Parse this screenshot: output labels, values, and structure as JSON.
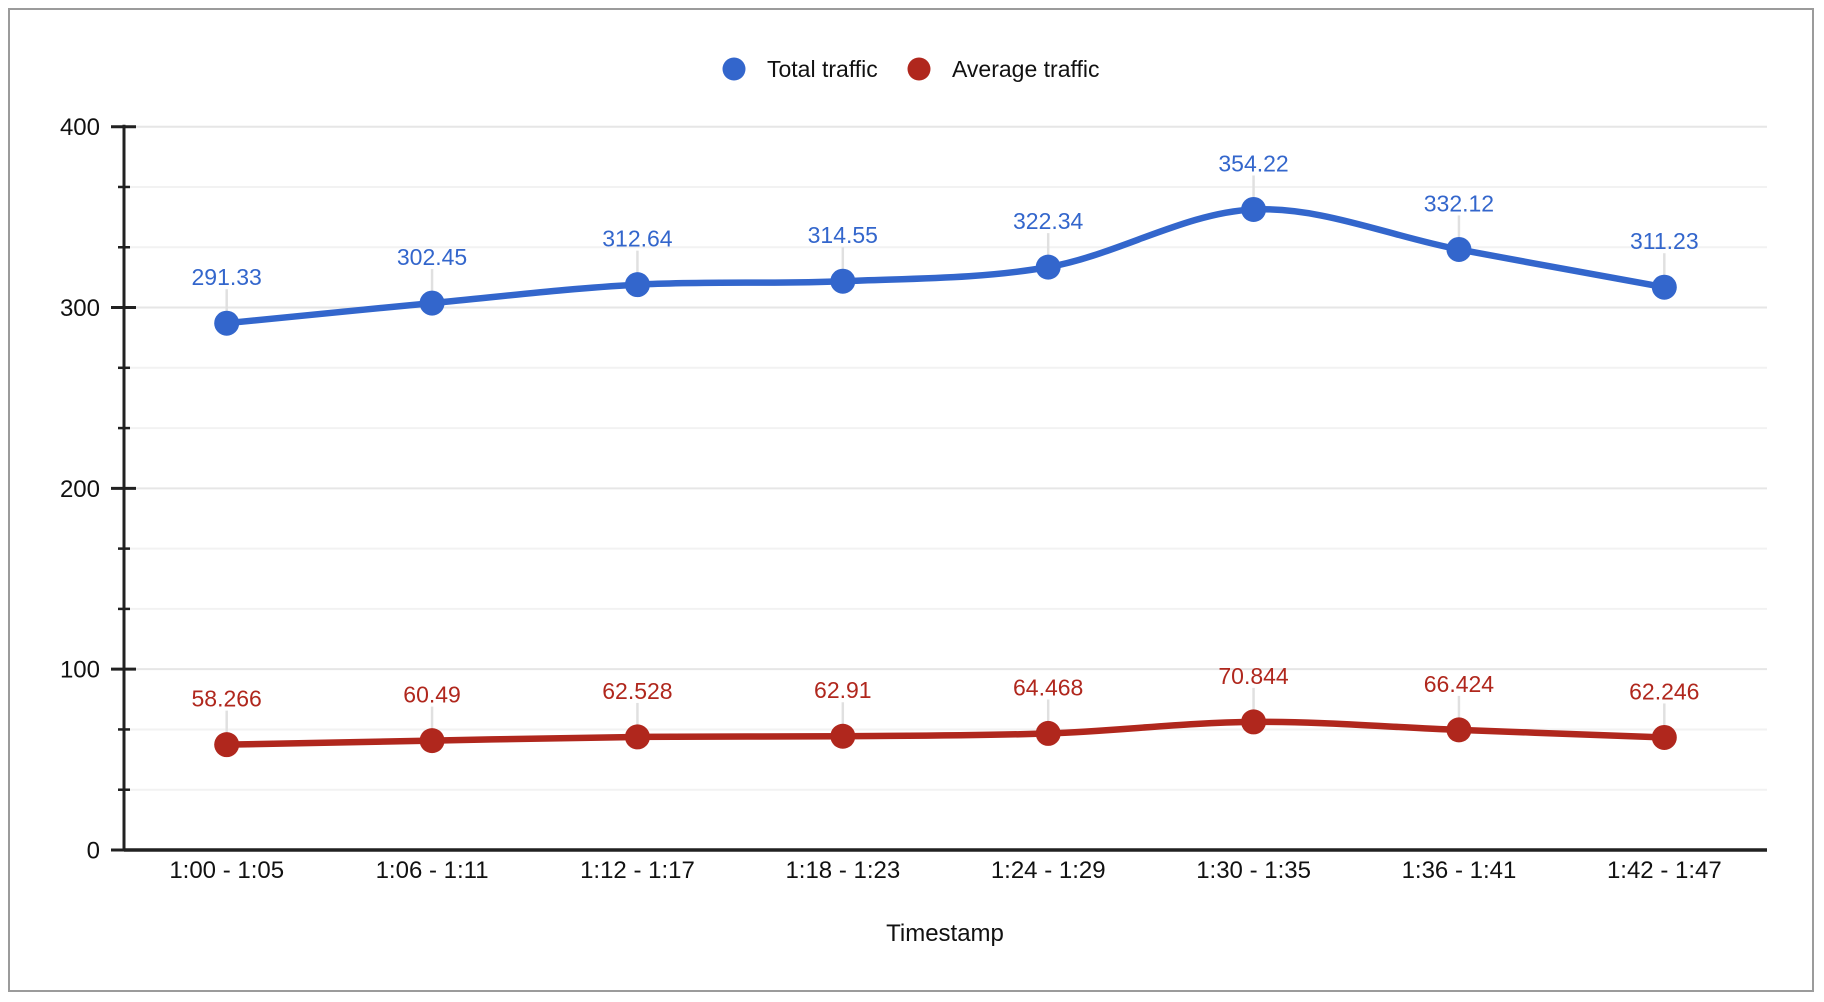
{
  "chart_data": {
    "type": "line",
    "title": "",
    "xlabel": "Timestamp",
    "ylabel": "",
    "categories": [
      "1:00 - 1:05",
      "1:06 - 1:11",
      "1:12 - 1:17",
      "1:18 - 1:23",
      "1:24 - 1:29",
      "1:30 - 1:35",
      "1:36 - 1:41",
      "1:42 - 1:47"
    ],
    "series": [
      {
        "name": "Total traffic",
        "color": "#3366cc",
        "values": [
          291.33,
          302.45,
          312.64,
          314.55,
          322.34,
          354.22,
          332.12,
          311.23
        ],
        "labels": [
          "291.33",
          "302.45",
          "312.64",
          "314.55",
          "322.34",
          "354.22",
          "332.12",
          "311.23"
        ]
      },
      {
        "name": "Average traffic",
        "color": "#b0271d",
        "values": [
          58.266,
          60.49,
          62.528,
          62.91,
          64.468,
          70.844,
          66.424,
          62.246
        ],
        "labels": [
          "58.266",
          "60.49",
          "62.528",
          "62.91",
          "64.468",
          "70.844",
          "66.424",
          "62.246"
        ]
      }
    ],
    "ylim": [
      0,
      400
    ],
    "yticks": [
      0,
      100,
      200,
      300,
      400
    ],
    "ytick_labels": [
      "0",
      "100",
      "200",
      "300",
      "400"
    ],
    "minor_ytick_step": 33.333,
    "grid": "horizontal major and minor gridlines",
    "legend_position": "top-center",
    "smooth_lines": true,
    "point_labels_visible": true
  },
  "style_tokens": {
    "frame_border_color": "#9b9b9b",
    "background_color": "#ffffff",
    "axis_line_color": "#212121",
    "major_grid_color": "#e6e6e6",
    "minor_grid_color": "#f2f2f2",
    "label_connector_color": "#e0e0e0",
    "text_color": "#111111"
  }
}
